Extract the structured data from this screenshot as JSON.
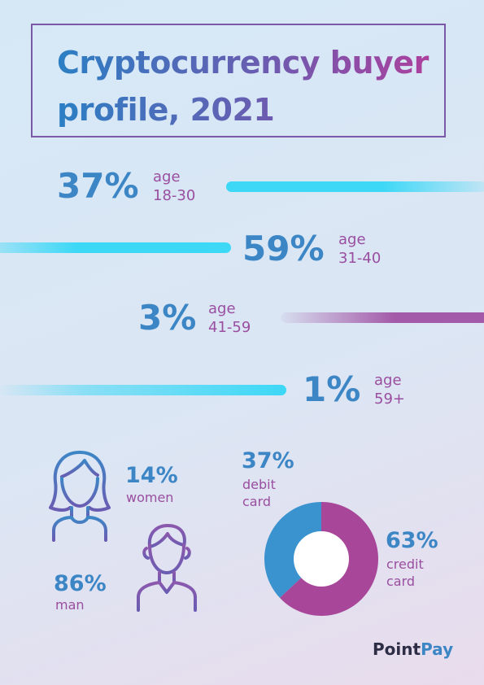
{
  "title": "Cryptocurrency buyer profile, 2021",
  "age_groups": [
    {
      "pct": "37%",
      "age_label": "age",
      "range": "18-30"
    },
    {
      "pct": "59%",
      "age_label": "age",
      "range": "31-40"
    },
    {
      "pct": "3%",
      "age_label": "age",
      "range": "41-59"
    },
    {
      "pct": "1%",
      "age_label": "age",
      "range": "59+"
    }
  ],
  "gender": {
    "women": {
      "pct": "14%",
      "label": "women",
      "icon": "woman-icon"
    },
    "men": {
      "pct": "86%",
      "label": "man",
      "icon": "man-icon"
    }
  },
  "payment": {
    "debit": {
      "pct": "37%",
      "label_1": "debit",
      "label_2": "card"
    },
    "credit": {
      "pct": "63%",
      "label_1": "credit",
      "label_2": "card"
    }
  },
  "logo": {
    "part1": "Point",
    "part2": "Pay"
  },
  "colors": {
    "blue": "#3d86c6",
    "purple": "#9a4ea0",
    "cyan": "#3cd8f6",
    "donut_blue": "#3a93cf",
    "donut_purple": "#a8479a"
  },
  "chart_data": [
    {
      "type": "bar",
      "categories": [
        "18-30",
        "31-40",
        "41-59",
        "59+"
      ],
      "values": [
        37,
        59,
        3,
        1
      ],
      "title": "Cryptocurrency buyer profile, 2021"
    },
    {
      "type": "pie",
      "categories": [
        "women",
        "man"
      ],
      "values": [
        14,
        86
      ]
    },
    {
      "type": "pie",
      "categories": [
        "debit card",
        "credit card"
      ],
      "values": [
        37,
        63
      ]
    }
  ]
}
